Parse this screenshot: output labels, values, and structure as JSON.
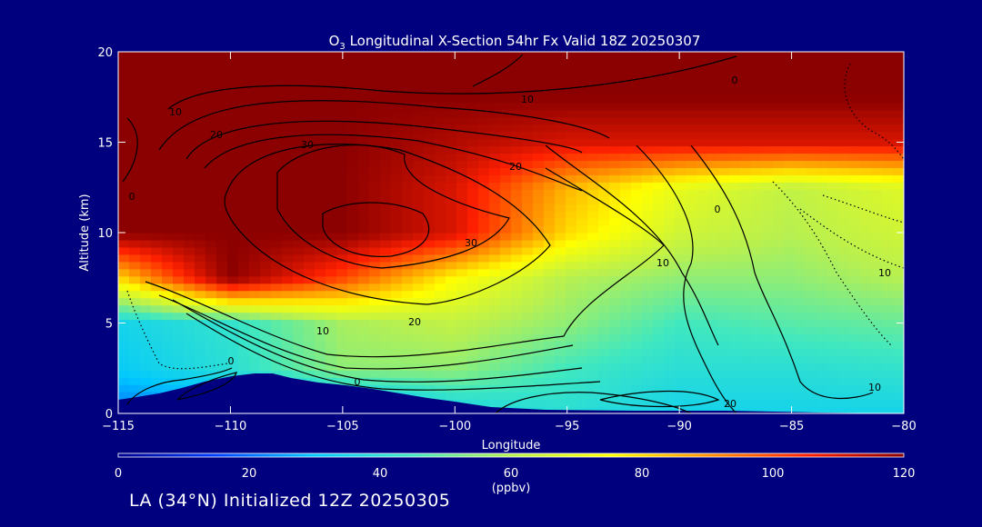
{
  "chart_data": {
    "type": "heatmap",
    "title": "O₃ Longitudinal X-Section 54hr  Fx Valid 18Z 20250307",
    "xlabel": "Longitude",
    "ylabel": "Altitude (km)",
    "xlim": [
      -115,
      -80
    ],
    "ylim": [
      0,
      20
    ],
    "xticks": [
      -115,
      -110,
      -105,
      -100,
      -95,
      -90,
      -85,
      -80
    ],
    "yticks": [
      0,
      5,
      10,
      15,
      20
    ],
    "colorbar": {
      "label": "(ppbv)",
      "range": [
        0,
        120
      ],
      "ticks": [
        0,
        20,
        40,
        60,
        80,
        100,
        120
      ],
      "colors": [
        "#000090",
        "#0040ff",
        "#00c8ff",
        "#40e8c0",
        "#b8f050",
        "#ffff00",
        "#ff9000",
        "#ff2000",
        "#8b0000"
      ]
    },
    "ozone_field_ppbv": {
      "x": [
        -115,
        -110,
        -105,
        -100,
        -95,
        -90,
        -85,
        -80
      ],
      "y": [
        0,
        2.5,
        5,
        7.5,
        10,
        12.5,
        15,
        17.5,
        20
      ],
      "z": [
        [
          20,
          20,
          20,
          35,
          40,
          35,
          35,
          35
        ],
        [
          32,
          40,
          55,
          55,
          45,
          40,
          40,
          42
        ],
        [
          35,
          42,
          58,
          62,
          55,
          45,
          48,
          50
        ],
        [
          80,
          120,
          100,
          75,
          60,
          55,
          55,
          60
        ],
        [
          120,
          120,
          120,
          110,
          80,
          65,
          60,
          65
        ],
        [
          120,
          120,
          120,
          110,
          85,
          70,
          62,
          68
        ],
        [
          120,
          120,
          120,
          115,
          110,
          110,
          110,
          110
        ],
        [
          120,
          120,
          120,
          120,
          120,
          120,
          120,
          120
        ],
        [
          120,
          120,
          120,
          120,
          120,
          120,
          120,
          120
        ]
      ]
    },
    "contour_labels": [
      "10",
      "20",
      "30",
      "20",
      "10",
      "30",
      "0",
      "20",
      "10",
      "20",
      "0",
      "10",
      "10",
      "0",
      "0",
      "10",
      "0"
    ],
    "caption": "LA (34°N) Initialized 12Z 20250305"
  }
}
